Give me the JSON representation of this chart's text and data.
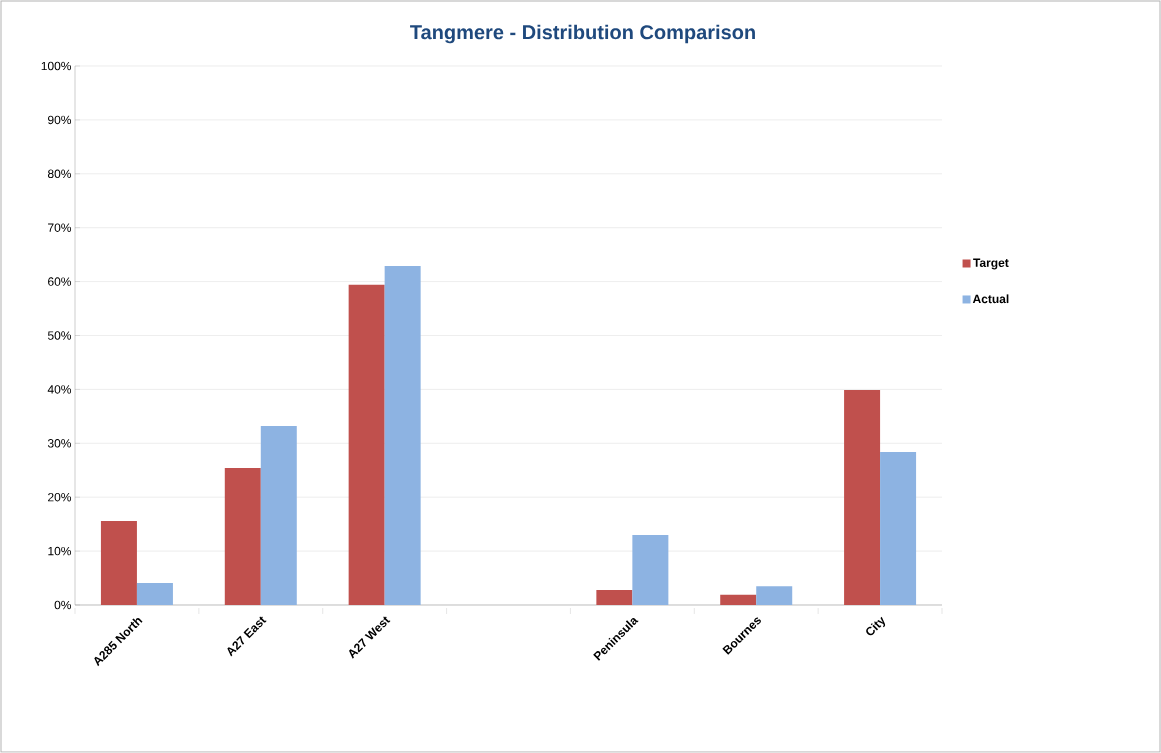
{
  "chart_data": {
    "type": "bar",
    "title": "Tangmere - Distribution Comparison",
    "categories": [
      "A285 North",
      "A27 East",
      "A27 West",
      null,
      "Peninsula",
      "Bournes",
      "City"
    ],
    "series": [
      {
        "name": "Target",
        "color": "#c0504d",
        "values": [
          15.6,
          25.4,
          59.4,
          null,
          2.8,
          1.9,
          39.9
        ]
      },
      {
        "name": "Actual",
        "color": "#8db3e2",
        "values": [
          4.1,
          33.2,
          62.9,
          null,
          13.0,
          3.5,
          28.4
        ]
      }
    ],
    "ylim": [
      0,
      100
    ],
    "yticks": [
      {
        "value": 0,
        "label": "0%"
      },
      {
        "value": 10,
        "label": "10%"
      },
      {
        "value": 20,
        "label": "20%"
      },
      {
        "value": 30,
        "label": "30%"
      },
      {
        "value": 40,
        "label": "40%"
      },
      {
        "value": 50,
        "label": "50%"
      },
      {
        "value": 60,
        "label": "60%"
      },
      {
        "value": 70,
        "label": "70%"
      },
      {
        "value": 80,
        "label": "80%"
      },
      {
        "value": 90,
        "label": "90%"
      },
      {
        "value": 100,
        "label": "100%"
      }
    ],
    "grid": "y",
    "legend": "right"
  }
}
